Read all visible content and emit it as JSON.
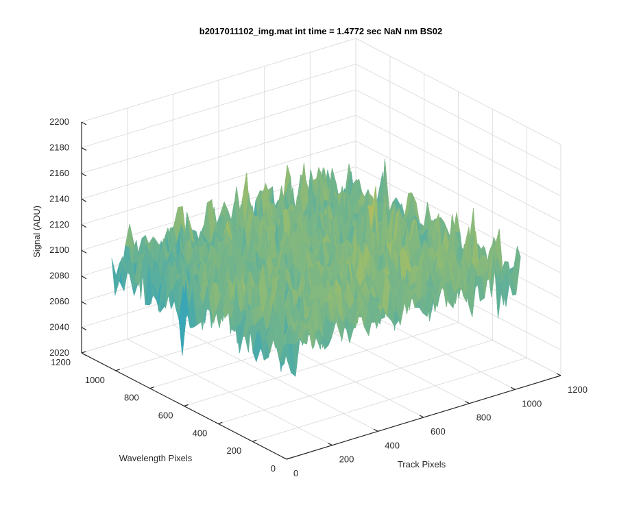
{
  "chart_data": {
    "type": "surface",
    "title": "b2017011102_img.mat int time = 1.4772 sec  NaN nm BS02",
    "xlabel": "Track Pixels",
    "ylabel": "Wavelength Pixels",
    "zlabel": "Signal (ADU)",
    "xlim": [
      0,
      1200
    ],
    "ylim": [
      0,
      1200
    ],
    "zlim": [
      2020,
      2200
    ],
    "x_ticks": [
      0,
      200,
      400,
      600,
      800,
      1000,
      1200
    ],
    "y_ticks": [
      0,
      200,
      400,
      600,
      800,
      1000,
      1200
    ],
    "z_ticks": [
      2020,
      2040,
      2060,
      2080,
      2100,
      2120,
      2140,
      2160,
      2180,
      2200
    ],
    "x_tick_labels": [
      "0",
      "200",
      "400",
      "600",
      "800",
      "1000",
      "1200"
    ],
    "y_tick_labels": [
      "0",
      "200",
      "400",
      "600",
      "800",
      "1000",
      "1200"
    ],
    "z_tick_labels": [
      "2020",
      "2040",
      "2060",
      "2080",
      "2100",
      "2120",
      "2140",
      "2160",
      "2180",
      "2200"
    ],
    "surface_extent": {
      "x": [
        0,
        1024
      ],
      "y": [
        0,
        1024
      ]
    },
    "surface_signal": {
      "mean": 2105,
      "min": 2030,
      "max": 2185
    },
    "colormap": [
      "#0072BD",
      "#1a8fc8",
      "#3aa6b6",
      "#6db38f",
      "#9dbd6b",
      "#c8bd4c",
      "#e8b83a"
    ],
    "grid": true,
    "view": {
      "azimuth": -37.5,
      "elevation": 30
    }
  }
}
